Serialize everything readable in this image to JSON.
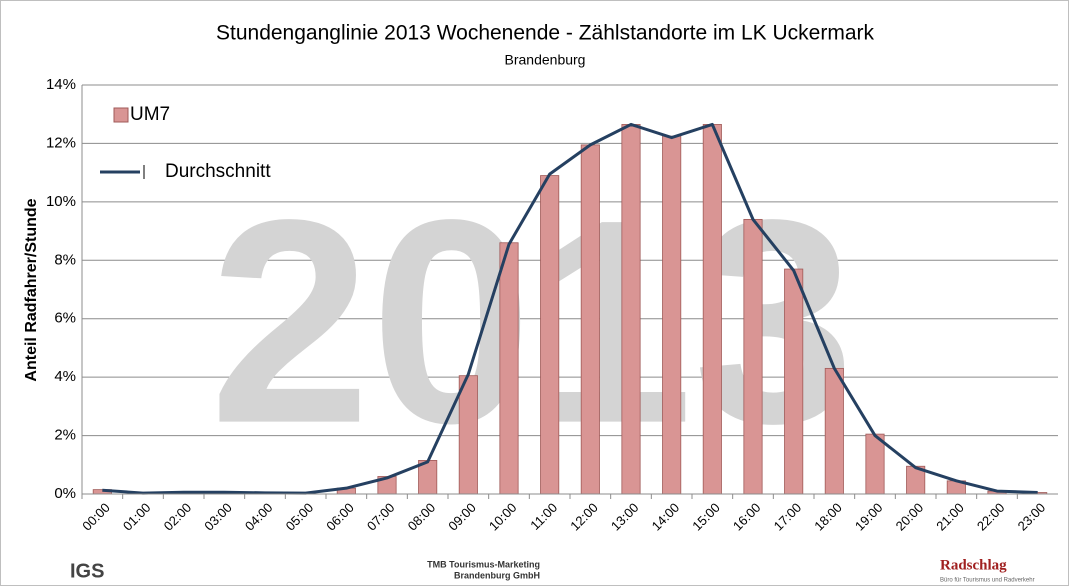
{
  "chart_data": {
    "type": "bar",
    "title": "Stundenganglinie 2013 Wochenende - Zählstandorte im LK Uckermark",
    "subtitle": "Brandenburg",
    "watermark": "2013",
    "y_label": "Anteil Radfahrer/Stunde",
    "categories": [
      "00:00",
      "01:00",
      "02:00",
      "03:00",
      "04:00",
      "05:00",
      "06:00",
      "07:00",
      "08:00",
      "09:00",
      "10:00",
      "11:00",
      "12:00",
      "13:00",
      "14:00",
      "15:00",
      "16:00",
      "17:00",
      "18:00",
      "19:00",
      "20:00",
      "21:00",
      "22:00",
      "23:00"
    ],
    "series": [
      {
        "name": "UM7",
        "type": "bar",
        "color": "#d99594",
        "values": [
          0.15,
          0.02,
          0.03,
          0.03,
          0.02,
          0.02,
          0.2,
          0.6,
          1.15,
          4.05,
          8.6,
          10.9,
          11.95,
          12.65,
          12.25,
          12.65,
          9.4,
          7.7,
          4.3,
          2.05,
          0.95,
          0.45,
          0.1,
          0.05
        ]
      },
      {
        "name": "Durchschnitt",
        "type": "line",
        "color": "#254061",
        "values": [
          0.13,
          0.03,
          0.06,
          0.06,
          0.04,
          0.03,
          0.2,
          0.55,
          1.1,
          4.1,
          8.55,
          10.95,
          11.95,
          12.65,
          12.2,
          12.65,
          9.4,
          7.65,
          4.3,
          2.0,
          0.9,
          0.45,
          0.1,
          0.05
        ]
      }
    ],
    "ylim": [
      0,
      14
    ],
    "yticks": [
      {
        "value": 0,
        "label": "0%"
      },
      {
        "value": 2,
        "label": "2%"
      },
      {
        "value": 4,
        "label": "4%"
      },
      {
        "value": 6,
        "label": "6%"
      },
      {
        "value": 8,
        "label": "8%"
      },
      {
        "value": 10,
        "label": "10%"
      },
      {
        "value": 12,
        "label": "12%"
      },
      {
        "value": 14,
        "label": "14%"
      }
    ],
    "grid": true,
    "legend": "top-left"
  },
  "footer": {
    "left": "IGS",
    "center_line1": "TMB Tourismus-Marketing",
    "center_line2": "Brandenburg GmbH",
    "right": "Radschlag",
    "right_sub": "Büro für Tourismus und Radverkehr"
  }
}
